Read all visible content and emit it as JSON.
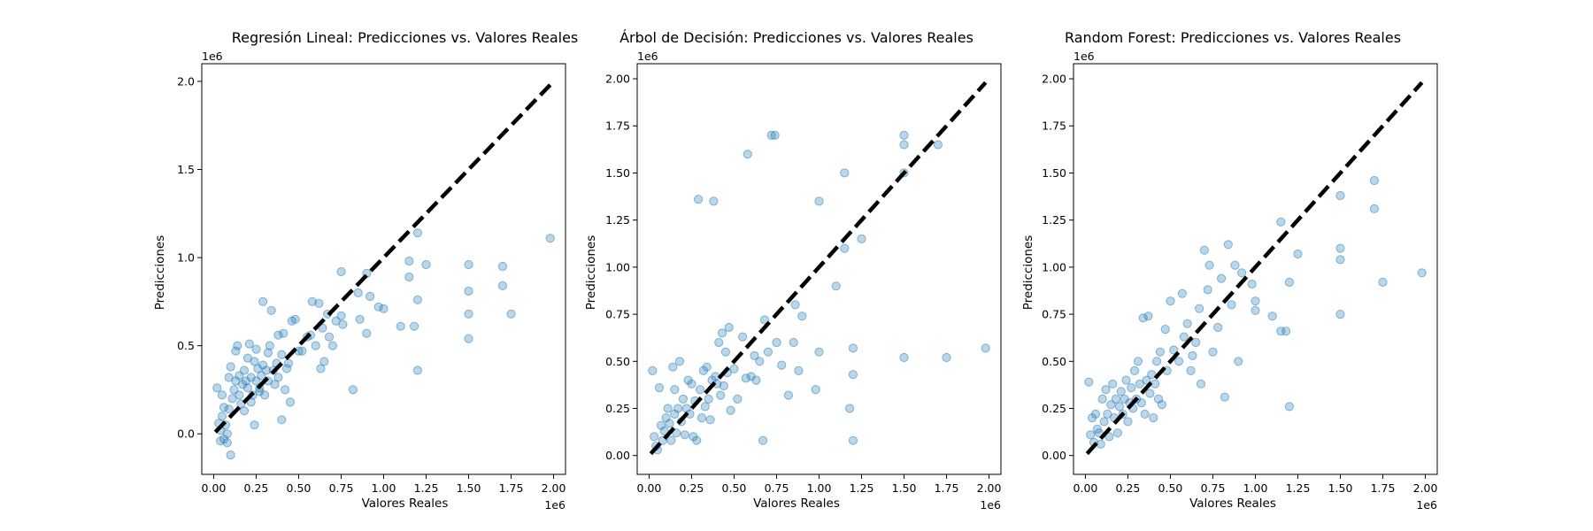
{
  "chart_data": [
    {
      "type": "scatter",
      "title": "Regresión Lineal: Predicciones vs. Valores Reales",
      "xlabel": "Valores Reales",
      "ylabel": "Predicciones",
      "x_offset": "1e6",
      "y_offset": "1e6",
      "xlim": [
        -0.07,
        2.07
      ],
      "ylim": [
        -0.23,
        2.1
      ],
      "xticks": [
        0.0,
        0.25,
        0.5,
        0.75,
        1.0,
        1.25,
        1.5,
        1.75,
        2.0
      ],
      "xtick_labels": [
        "0.00",
        "0.25",
        "0.50",
        "0.75",
        "1.00",
        "1.25",
        "1.50",
        "1.75",
        "2.00"
      ],
      "yticks": [
        0.0,
        0.5,
        1.0,
        1.5,
        2.0
      ],
      "ytick_labels": [
        "0.0",
        "0.5",
        "1.0",
        "1.5",
        "2.0"
      ],
      "reference_line": [
        [
          0.01,
          0.01
        ],
        [
          1.98,
          1.98
        ]
      ],
      "point_color": "#1f77b4",
      "points": [
        [
          0.02,
          0.26
        ],
        [
          0.03,
          0.06
        ],
        [
          0.04,
          0.02
        ],
        [
          0.04,
          -0.04
        ],
        [
          0.05,
          0.1
        ],
        [
          0.05,
          0.22
        ],
        [
          0.06,
          -0.03
        ],
        [
          0.06,
          0.15
        ],
        [
          0.07,
          0.05
        ],
        [
          0.08,
          0.0
        ],
        [
          0.08,
          -0.05
        ],
        [
          0.09,
          0.14
        ],
        [
          0.09,
          0.32
        ],
        [
          0.1,
          -0.12
        ],
        [
          0.1,
          0.38
        ],
        [
          0.11,
          0.2
        ],
        [
          0.12,
          0.25
        ],
        [
          0.13,
          0.3
        ],
        [
          0.13,
          0.47
        ],
        [
          0.14,
          0.5
        ],
        [
          0.15,
          0.22
        ],
        [
          0.15,
          0.33
        ],
        [
          0.16,
          0.17
        ],
        [
          0.17,
          0.28
        ],
        [
          0.18,
          0.13
        ],
        [
          0.18,
          0.36
        ],
        [
          0.19,
          0.3
        ],
        [
          0.2,
          0.26
        ],
        [
          0.2,
          0.43
        ],
        [
          0.21,
          0.51
        ],
        [
          0.22,
          0.18
        ],
        [
          0.22,
          0.32
        ],
        [
          0.23,
          0.22
        ],
        [
          0.24,
          0.05
        ],
        [
          0.24,
          0.41
        ],
        [
          0.25,
          0.3
        ],
        [
          0.25,
          0.48
        ],
        [
          0.26,
          0.37
        ],
        [
          0.27,
          0.26
        ],
        [
          0.27,
          0.24
        ],
        [
          0.28,
          0.33
        ],
        [
          0.29,
          0.39
        ],
        [
          0.29,
          0.75
        ],
        [
          0.3,
          0.22
        ],
        [
          0.31,
          0.36
        ],
        [
          0.32,
          0.46
        ],
        [
          0.32,
          0.3
        ],
        [
          0.33,
          0.5
        ],
        [
          0.34,
          0.7
        ],
        [
          0.35,
          0.36
        ],
        [
          0.36,
          0.28
        ],
        [
          0.37,
          0.4
        ],
        [
          0.38,
          0.56
        ],
        [
          0.38,
          0.32
        ],
        [
          0.4,
          0.45
        ],
        [
          0.4,
          0.08
        ],
        [
          0.41,
          0.57
        ],
        [
          0.42,
          0.25
        ],
        [
          0.43,
          0.37
        ],
        [
          0.44,
          0.4
        ],
        [
          0.45,
          0.18
        ],
        [
          0.46,
          0.64
        ],
        [
          0.48,
          0.65
        ],
        [
          0.5,
          0.47
        ],
        [
          0.52,
          0.47
        ],
        [
          0.55,
          0.55
        ],
        [
          0.57,
          0.56
        ],
        [
          0.58,
          0.75
        ],
        [
          0.6,
          0.5
        ],
        [
          0.62,
          0.74
        ],
        [
          0.63,
          0.37
        ],
        [
          0.64,
          0.6
        ],
        [
          0.65,
          0.41
        ],
        [
          0.67,
          0.68
        ],
        [
          0.68,
          0.55
        ],
        [
          0.7,
          0.5
        ],
        [
          0.72,
          0.64
        ],
        [
          0.75,
          0.92
        ],
        [
          0.75,
          0.67
        ],
        [
          0.76,
          0.62
        ],
        [
          0.82,
          0.25
        ],
        [
          0.85,
          0.8
        ],
        [
          0.86,
          0.65
        ],
        [
          0.9,
          0.57
        ],
        [
          0.9,
          0.91
        ],
        [
          0.92,
          0.78
        ],
        [
          0.97,
          0.72
        ],
        [
          1.0,
          0.71
        ],
        [
          1.1,
          0.61
        ],
        [
          1.15,
          0.89
        ],
        [
          1.15,
          0.98
        ],
        [
          1.18,
          0.61
        ],
        [
          1.2,
          0.76
        ],
        [
          1.2,
          0.36
        ],
        [
          1.2,
          1.14
        ],
        [
          1.25,
          0.96
        ],
        [
          1.5,
          0.68
        ],
        [
          1.5,
          0.54
        ],
        [
          1.5,
          0.81
        ],
        [
          1.5,
          0.96
        ],
        [
          1.7,
          0.84
        ],
        [
          1.7,
          0.95
        ],
        [
          1.75,
          0.68
        ],
        [
          1.98,
          1.11
        ]
      ]
    },
    {
      "type": "scatter",
      "title": "Árbol de Decisión: Predicciones vs. Valores Reales",
      "xlabel": "Valores Reales",
      "ylabel": "Predicciones",
      "x_offset": "1e6",
      "y_offset": "1e6",
      "xlim": [
        -0.07,
        2.07
      ],
      "ylim": [
        -0.1,
        2.08
      ],
      "xticks": [
        0.0,
        0.25,
        0.5,
        0.75,
        1.0,
        1.25,
        1.5,
        1.75,
        2.0
      ],
      "xtick_labels": [
        "0.00",
        "0.25",
        "0.50",
        "0.75",
        "1.00",
        "1.25",
        "1.50",
        "1.75",
        "2.00"
      ],
      "yticks": [
        0.0,
        0.25,
        0.5,
        0.75,
        1.0,
        1.25,
        1.5,
        1.75,
        2.0
      ],
      "ytick_labels": [
        "0.00",
        "0.25",
        "0.50",
        "0.75",
        "1.00",
        "1.25",
        "1.50",
        "1.75",
        "2.00"
      ],
      "reference_line": [
        [
          0.01,
          0.01
        ],
        [
          1.98,
          1.98
        ]
      ],
      "point_color": "#1f77b4",
      "points": [
        [
          0.02,
          0.45
        ],
        [
          0.03,
          0.1
        ],
        [
          0.04,
          0.05
        ],
        [
          0.05,
          0.03
        ],
        [
          0.06,
          0.36
        ],
        [
          0.07,
          0.16
        ],
        [
          0.08,
          0.08
        ],
        [
          0.09,
          0.13
        ],
        [
          0.1,
          0.2
        ],
        [
          0.11,
          0.25
        ],
        [
          0.12,
          0.17
        ],
        [
          0.13,
          0.08
        ],
        [
          0.14,
          0.47
        ],
        [
          0.15,
          0.22
        ],
        [
          0.15,
          0.35
        ],
        [
          0.16,
          0.12
        ],
        [
          0.17,
          0.25
        ],
        [
          0.18,
          0.5
        ],
        [
          0.19,
          0.18
        ],
        [
          0.2,
          0.3
        ],
        [
          0.21,
          0.11
        ],
        [
          0.22,
          0.25
        ],
        [
          0.23,
          0.4
        ],
        [
          0.24,
          0.22
        ],
        [
          0.25,
          0.38
        ],
        [
          0.26,
          0.1
        ],
        [
          0.27,
          0.29
        ],
        [
          0.28,
          0.08
        ],
        [
          0.29,
          1.36
        ],
        [
          0.3,
          0.35
        ],
        [
          0.31,
          0.2
        ],
        [
          0.32,
          0.45
        ],
        [
          0.33,
          0.26
        ],
        [
          0.34,
          0.47
        ],
        [
          0.35,
          0.3
        ],
        [
          0.36,
          0.19
        ],
        [
          0.37,
          0.4
        ],
        [
          0.38,
          1.35
        ],
        [
          0.39,
          0.42
        ],
        [
          0.4,
          0.38
        ],
        [
          0.41,
          0.6
        ],
        [
          0.42,
          0.32
        ],
        [
          0.43,
          0.65
        ],
        [
          0.44,
          0.37
        ],
        [
          0.45,
          0.55
        ],
        [
          0.46,
          0.44
        ],
        [
          0.47,
          0.68
        ],
        [
          0.48,
          0.24
        ],
        [
          0.5,
          0.46
        ],
        [
          0.52,
          0.3
        ],
        [
          0.55,
          0.63
        ],
        [
          0.57,
          0.41
        ],
        [
          0.58,
          1.6
        ],
        [
          0.6,
          0.42
        ],
        [
          0.62,
          0.53
        ],
        [
          0.63,
          0.4
        ],
        [
          0.65,
          0.5
        ],
        [
          0.67,
          0.08
        ],
        [
          0.68,
          0.72
        ],
        [
          0.7,
          0.55
        ],
        [
          0.72,
          1.7
        ],
        [
          0.74,
          1.7
        ],
        [
          0.75,
          0.6
        ],
        [
          0.78,
          0.48
        ],
        [
          0.82,
          0.32
        ],
        [
          0.85,
          0.6
        ],
        [
          0.86,
          0.8
        ],
        [
          0.88,
          0.45
        ],
        [
          0.9,
          0.74
        ],
        [
          0.98,
          0.35
        ],
        [
          1.0,
          0.55
        ],
        [
          1.0,
          1.35
        ],
        [
          1.1,
          0.9
        ],
        [
          1.15,
          1.1
        ],
        [
          1.15,
          1.5
        ],
        [
          1.18,
          0.25
        ],
        [
          1.2,
          0.57
        ],
        [
          1.2,
          0.43
        ],
        [
          1.2,
          0.08
        ],
        [
          1.25,
          1.15
        ],
        [
          1.5,
          0.52
        ],
        [
          1.5,
          1.5
        ],
        [
          1.5,
          1.65
        ],
        [
          1.5,
          1.7
        ],
        [
          1.7,
          1.65
        ],
        [
          1.75,
          0.52
        ],
        [
          1.98,
          0.57
        ]
      ]
    },
    {
      "type": "scatter",
      "title": "Random Forest: Predicciones vs. Valores Reales",
      "xlabel": "Valores Reales",
      "ylabel": "Predicciones",
      "x_offset": "1e6",
      "y_offset": "1e6",
      "xlim": [
        -0.07,
        2.07
      ],
      "ylim": [
        -0.1,
        2.08
      ],
      "xticks": [
        0.0,
        0.25,
        0.5,
        0.75,
        1.0,
        1.25,
        1.5,
        1.75,
        2.0
      ],
      "xtick_labels": [
        "0.00",
        "0.25",
        "0.50",
        "0.75",
        "1.00",
        "1.25",
        "1.50",
        "1.75",
        "2.00"
      ],
      "yticks": [
        0.0,
        0.25,
        0.5,
        0.75,
        1.0,
        1.25,
        1.5,
        1.75,
        2.0
      ],
      "ytick_labels": [
        "0.00",
        "0.25",
        "0.50",
        "0.75",
        "1.00",
        "1.25",
        "1.50",
        "1.75",
        "2.00"
      ],
      "reference_line": [
        [
          0.01,
          0.01
        ],
        [
          1.98,
          1.98
        ]
      ],
      "point_color": "#1f77b4",
      "points": [
        [
          0.02,
          0.39
        ],
        [
          0.03,
          0.11
        ],
        [
          0.04,
          0.2
        ],
        [
          0.05,
          0.07
        ],
        [
          0.06,
          0.22
        ],
        [
          0.07,
          0.14
        ],
        [
          0.08,
          0.12
        ],
        [
          0.09,
          0.06
        ],
        [
          0.1,
          0.3
        ],
        [
          0.11,
          0.18
        ],
        [
          0.12,
          0.35
        ],
        [
          0.13,
          0.22
        ],
        [
          0.14,
          0.1
        ],
        [
          0.15,
          0.27
        ],
        [
          0.16,
          0.38
        ],
        [
          0.17,
          0.2
        ],
        [
          0.18,
          0.3
        ],
        [
          0.19,
          0.12
        ],
        [
          0.2,
          0.26
        ],
        [
          0.21,
          0.34
        ],
        [
          0.22,
          0.22
        ],
        [
          0.23,
          0.3
        ],
        [
          0.24,
          0.4
        ],
        [
          0.25,
          0.18
        ],
        [
          0.26,
          0.28
        ],
        [
          0.27,
          0.36
        ],
        [
          0.28,
          0.25
        ],
        [
          0.29,
          0.45
        ],
        [
          0.3,
          0.3
        ],
        [
          0.31,
          0.5
        ],
        [
          0.32,
          0.38
        ],
        [
          0.33,
          0.28
        ],
        [
          0.34,
          0.73
        ],
        [
          0.35,
          0.22
        ],
        [
          0.36,
          0.4
        ],
        [
          0.37,
          0.74
        ],
        [
          0.38,
          0.33
        ],
        [
          0.39,
          0.43
        ],
        [
          0.4,
          0.2
        ],
        [
          0.41,
          0.38
        ],
        [
          0.42,
          0.5
        ],
        [
          0.43,
          0.3
        ],
        [
          0.44,
          0.55
        ],
        [
          0.45,
          0.27
        ],
        [
          0.47,
          0.67
        ],
        [
          0.48,
          0.45
        ],
        [
          0.5,
          0.82
        ],
        [
          0.52,
          0.56
        ],
        [
          0.55,
          0.5
        ],
        [
          0.57,
          0.86
        ],
        [
          0.58,
          0.63
        ],
        [
          0.6,
          0.7
        ],
        [
          0.62,
          0.45
        ],
        [
          0.63,
          0.53
        ],
        [
          0.65,
          0.6
        ],
        [
          0.67,
          0.78
        ],
        [
          0.68,
          0.38
        ],
        [
          0.7,
          1.09
        ],
        [
          0.72,
          0.88
        ],
        [
          0.73,
          1.01
        ],
        [
          0.75,
          0.55
        ],
        [
          0.78,
          0.68
        ],
        [
          0.8,
          0.94
        ],
        [
          0.82,
          0.31
        ],
        [
          0.84,
          1.12
        ],
        [
          0.86,
          0.8
        ],
        [
          0.88,
          1.01
        ],
        [
          0.9,
          0.5
        ],
        [
          0.92,
          0.97
        ],
        [
          0.98,
          0.91
        ],
        [
          1.0,
          0.77
        ],
        [
          1.0,
          0.82
        ],
        [
          1.1,
          0.74
        ],
        [
          1.15,
          1.24
        ],
        [
          1.15,
          0.66
        ],
        [
          1.18,
          0.66
        ],
        [
          1.2,
          0.92
        ],
        [
          1.2,
          0.26
        ],
        [
          1.25,
          1.07
        ],
        [
          1.5,
          1.38
        ],
        [
          1.5,
          1.04
        ],
        [
          1.5,
          0.75
        ],
        [
          1.5,
          1.1
        ],
        [
          1.7,
          1.31
        ],
        [
          1.7,
          1.46
        ],
        [
          1.75,
          0.92
        ],
        [
          1.98,
          0.97
        ]
      ]
    }
  ]
}
